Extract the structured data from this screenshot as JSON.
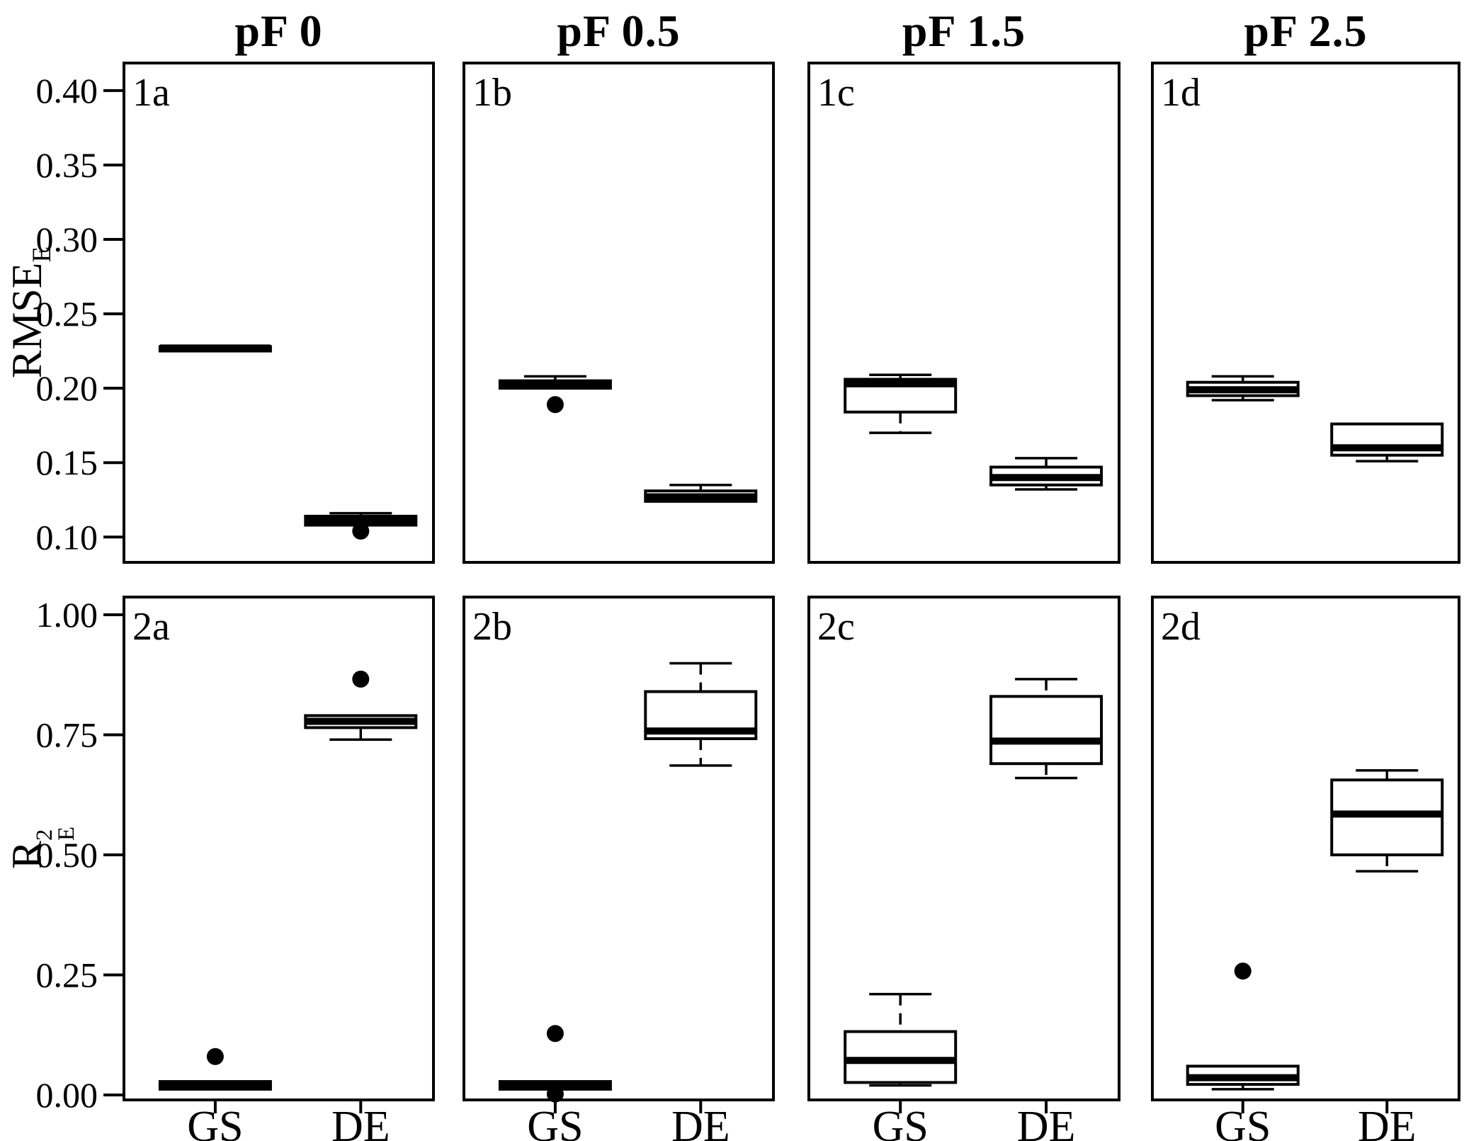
{
  "figure": {
    "background": "#ffffff",
    "foreground": "#000000",
    "columns": [
      "pF 0",
      "pF 0.5",
      "pF 1.5",
      "pF 2.5"
    ],
    "x_categories": [
      "GS",
      "DE"
    ],
    "rows": [
      {
        "ylabel": {
          "main": "RMSE",
          "sup": "",
          "sub": "E"
        },
        "tick_labels": [
          "0.40",
          "0.35",
          "0.30",
          "0.25",
          "0.20",
          "0.15",
          "0.10"
        ],
        "tick_values": [
          0.4,
          0.35,
          0.3,
          0.25,
          0.2,
          0.15,
          0.1
        ],
        "domain": [
          0.083,
          0.4185
        ],
        "grid": false
      },
      {
        "ylabel": {
          "main": "R",
          "sup": "2",
          "sub": "E"
        },
        "tick_labels": [
          "1.00",
          "0.75",
          "0.50",
          "0.25",
          "0.00"
        ],
        "tick_values": [
          1.0,
          0.75,
          0.5,
          0.25,
          0.0
        ],
        "domain": [
          -0.0103,
          1.0369
        ],
        "grid": false
      }
    ]
  },
  "chart_data": [
    {
      "type": "boxplot",
      "id": "1a",
      "row": 0,
      "col": 0,
      "column_title": "pF 0",
      "ylabel": "RMSE_E",
      "groups": [
        {
          "name": "GS",
          "min": 0.225,
          "q1": 0.225,
          "median": 0.227,
          "q3": 0.228,
          "max": 0.228,
          "outliers": []
        },
        {
          "name": "DE",
          "min": 0.108,
          "q1": 0.108,
          "median": 0.111,
          "q3": 0.114,
          "max": 0.116,
          "outliers": [
            0.104
          ]
        }
      ]
    },
    {
      "type": "boxplot",
      "id": "1b",
      "row": 0,
      "col": 1,
      "column_title": "pF 0.5",
      "ylabel": "RMSE_E",
      "groups": [
        {
          "name": "GS",
          "min": 0.2,
          "q1": 0.2,
          "median": 0.202,
          "q3": 0.205,
          "max": 0.208,
          "outliers": [
            0.189
          ]
        },
        {
          "name": "DE",
          "min": 0.124,
          "q1": 0.124,
          "median": 0.127,
          "q3": 0.131,
          "max": 0.135,
          "outliers": []
        }
      ]
    },
    {
      "type": "boxplot",
      "id": "1c",
      "row": 0,
      "col": 2,
      "column_title": "pF 1.5",
      "ylabel": "RMSE_E",
      "groups": [
        {
          "name": "GS",
          "min": 0.17,
          "q1": 0.184,
          "median": 0.203,
          "q3": 0.206,
          "max": 0.209,
          "outliers": []
        },
        {
          "name": "DE",
          "min": 0.132,
          "q1": 0.135,
          "median": 0.14,
          "q3": 0.147,
          "max": 0.153,
          "outliers": []
        }
      ]
    },
    {
      "type": "boxplot",
      "id": "1d",
      "row": 0,
      "col": 3,
      "column_title": "pF 2.5",
      "ylabel": "RMSE_E",
      "groups": [
        {
          "name": "GS",
          "min": 0.192,
          "q1": 0.195,
          "median": 0.199,
          "q3": 0.204,
          "max": 0.208,
          "outliers": []
        },
        {
          "name": "DE",
          "min": 0.151,
          "q1": 0.155,
          "median": 0.16,
          "q3": 0.176,
          "max": 0.176,
          "outliers": []
        }
      ]
    },
    {
      "type": "boxplot",
      "id": "2a",
      "row": 1,
      "col": 0,
      "column_title": "pF 0",
      "ylabel": "R2_E",
      "groups": [
        {
          "name": "GS",
          "min": 0.012,
          "q1": 0.012,
          "median": 0.02,
          "q3": 0.028,
          "max": 0.028,
          "outliers": [
            0.08
          ]
        },
        {
          "name": "DE",
          "min": 0.74,
          "q1": 0.765,
          "median": 0.778,
          "q3": 0.79,
          "max": 0.79,
          "outliers": [
            0.866
          ]
        }
      ]
    },
    {
      "type": "boxplot",
      "id": "2b",
      "row": 1,
      "col": 1,
      "column_title": "pF 0.5",
      "ylabel": "R2_E",
      "groups": [
        {
          "name": "GS",
          "min": 0.012,
          "q1": 0.012,
          "median": 0.02,
          "q3": 0.028,
          "max": 0.028,
          "outliers": [
            0.128,
            0.002
          ]
        },
        {
          "name": "DE",
          "min": 0.686,
          "q1": 0.742,
          "median": 0.758,
          "q3": 0.84,
          "max": 0.899,
          "outliers": []
        }
      ]
    },
    {
      "type": "boxplot",
      "id": "2c",
      "row": 1,
      "col": 2,
      "column_title": "pF 1.5",
      "ylabel": "R2_E",
      "groups": [
        {
          "name": "GS",
          "min": 0.02,
          "q1": 0.026,
          "median": 0.072,
          "q3": 0.132,
          "max": 0.21,
          "outliers": []
        },
        {
          "name": "DE",
          "min": 0.66,
          "q1": 0.69,
          "median": 0.737,
          "q3": 0.83,
          "max": 0.866,
          "outliers": []
        }
      ]
    },
    {
      "type": "boxplot",
      "id": "2d",
      "row": 1,
      "col": 3,
      "column_title": "pF 2.5",
      "ylabel": "R2_E",
      "groups": [
        {
          "name": "GS",
          "min": 0.012,
          "q1": 0.022,
          "median": 0.036,
          "q3": 0.06,
          "max": 0.06,
          "outliers": [
            0.258
          ]
        },
        {
          "name": "DE",
          "min": 0.466,
          "q1": 0.5,
          "median": 0.585,
          "q3": 0.656,
          "max": 0.676,
          "outliers": []
        }
      ]
    }
  ]
}
